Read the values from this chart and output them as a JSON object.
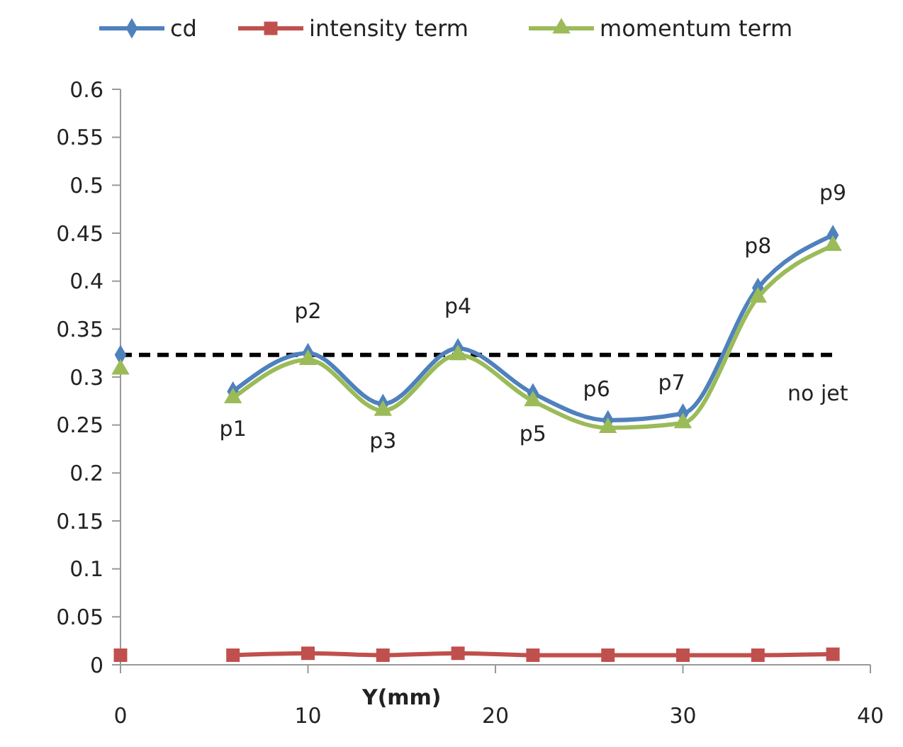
{
  "chart_data": {
    "type": "line",
    "xlabel": "Y(mm)",
    "x": [
      0,
      3,
      6,
      10,
      14,
      18,
      22,
      26,
      30,
      34,
      38
    ],
    "series": [
      {
        "name": "cd",
        "color": "#4f81bd",
        "marker": "diamond",
        "values": [
          0.323,
          null,
          0.285,
          0.325,
          0.272,
          0.33,
          0.283,
          0.255,
          0.262,
          0.393,
          0.448
        ]
      },
      {
        "name": "intensity term",
        "color": "#c0504d",
        "marker": "square",
        "values": [
          0.01,
          null,
          0.01,
          0.012,
          0.01,
          0.012,
          0.01,
          0.01,
          0.01,
          0.01,
          0.011
        ]
      },
      {
        "name": "momentum term",
        "color": "#9bbb59",
        "marker": "triangle",
        "values": [
          0.308,
          null,
          0.278,
          0.318,
          0.265,
          0.323,
          0.275,
          0.247,
          0.252,
          0.383,
          0.437
        ]
      }
    ],
    "xlim": [
      0,
      40
    ],
    "xticks": [
      0,
      10,
      20,
      30,
      40
    ],
    "ylim": [
      0,
      0.6
    ],
    "yticks": [
      0,
      0.05,
      0.1,
      0.15,
      0.2,
      0.25,
      0.3,
      0.35,
      0.4,
      0.45,
      0.5,
      0.55,
      0.6
    ],
    "ref_lines": [
      {
        "axis": "y",
        "value": 0.323,
        "color": "#000000",
        "line_style": "dashed",
        "label": "no jet"
      }
    ],
    "annotations": [
      {
        "text": "p1",
        "x": 6,
        "y": 0.285
      },
      {
        "text": "p2",
        "x": 10,
        "y": 0.325
      },
      {
        "text": "p3",
        "x": 14,
        "y": 0.272
      },
      {
        "text": "p4",
        "x": 18,
        "y": 0.33
      },
      {
        "text": "p5",
        "x": 22,
        "y": 0.283
      },
      {
        "text": "p6",
        "x": 26,
        "y": 0.255
      },
      {
        "text": "p7",
        "x": 30,
        "y": 0.262
      },
      {
        "text": "p8",
        "x": 34,
        "y": 0.393
      },
      {
        "text": "p9",
        "x": 38,
        "y": 0.448
      }
    ],
    "legend": "top",
    "grid": false
  }
}
